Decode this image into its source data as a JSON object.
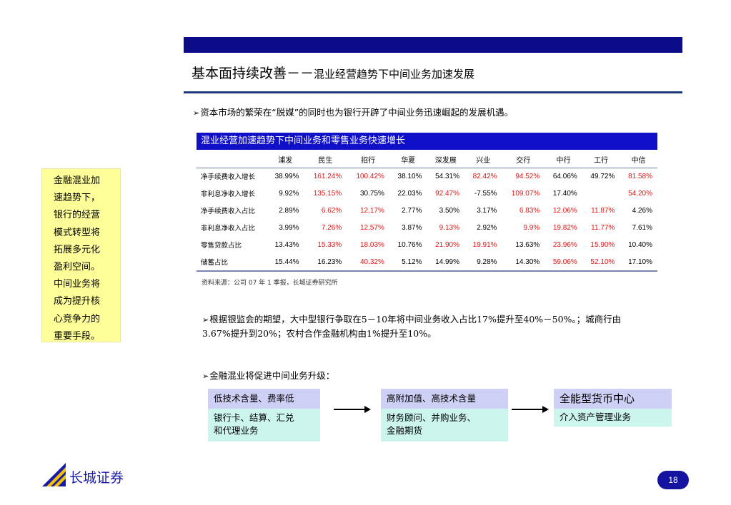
{
  "slide": {
    "title_main": "基本面持续改善－－",
    "title_sub": "混业经营趋势下中间业务加速发展",
    "page_number": "18"
  },
  "bullets": {
    "b1": "资本市场的繁荣在“脱媒”的同时也为银行开辟了中间业务迅速崛起的发展机遇。",
    "b2": "根据银监会的期望，大中型银行争取在5－10年将中间业务收入占比17%提升至40%－50%。；城商行由3.67%提升到20%；农村合作金融机构由1%提升至10%。",
    "b3": "金融混业将促进中间业务升级：",
    "arrow_glyph": "➢"
  },
  "table": {
    "title": "混业经营加速趋势下中间业务和零售业务快速增长",
    "columns": [
      "浦发",
      "民生",
      "招行",
      "华夏",
      "深发展",
      "兴业",
      "交行",
      "中行",
      "工行",
      "中信"
    ],
    "rows": [
      {
        "label": "净手续费收入增长",
        "values": [
          "38.99%",
          "161.24%",
          "100.42%",
          "38.10%",
          "54.31%",
          "82.42%",
          "94.52%",
          "64.06%",
          "49.72%",
          "81.58%"
        ],
        "red": [
          false,
          true,
          true,
          false,
          false,
          true,
          true,
          false,
          false,
          true
        ]
      },
      {
        "label": "非利息净收入增长",
        "values": [
          "9.92%",
          "135.15%",
          "30.75%",
          "22.03%",
          "92.47%",
          "-7.55%",
          "109.07%",
          "17.40%",
          "",
          "54.20%"
        ],
        "red": [
          false,
          true,
          false,
          false,
          true,
          false,
          true,
          false,
          false,
          true
        ]
      },
      {
        "label": "净手续费收入占比",
        "values": [
          "2.89%",
          "6.62%",
          "12.17%",
          "2.77%",
          "3.50%",
          "3.17%",
          "6.83%",
          "12.06%",
          "11.87%",
          "4.26%"
        ],
        "red": [
          false,
          true,
          true,
          false,
          false,
          false,
          true,
          true,
          true,
          false
        ]
      },
      {
        "label": "非利息净收入占比",
        "values": [
          "3.99%",
          "7.26%",
          "12.57%",
          "3.87%",
          "9.13%",
          "2.92%",
          "9.9%",
          "19.82%",
          "11.77%",
          "7.61%"
        ],
        "red": [
          false,
          true,
          true,
          false,
          true,
          false,
          true,
          true,
          true,
          false
        ]
      },
      {
        "label": "零售贷款占比",
        "values": [
          "13.43%",
          "15.33%",
          "18.03%",
          "10.76%",
          "21.90%",
          "19.91%",
          "13.63%",
          "23.96%",
          "15.90%",
          "10.40%"
        ],
        "red": [
          false,
          true,
          true,
          false,
          true,
          true,
          false,
          true,
          true,
          false
        ]
      },
      {
        "label": "储蓄占比",
        "values": [
          "15.44%",
          "16.23%",
          "40.32%",
          "5.12%",
          "14.99%",
          "9.28%",
          "14.30%",
          "59.06%",
          "52.10%",
          "17.10%"
        ],
        "red": [
          false,
          false,
          true,
          false,
          false,
          false,
          false,
          true,
          true,
          false
        ]
      }
    ],
    "source": "资料来源：公司 07 年 1 季报，长城证券研究所"
  },
  "callout": {
    "lines": [
      "金融混业加",
      "速趋势下，",
      "银行的经营",
      "模式转型将",
      "拓展多元化",
      "盈利空间。",
      "中间业务将",
      "成为提升核",
      "心竞争力的",
      "重要手段。"
    ]
  },
  "flow": {
    "box1": {
      "head": "低技术含量、费率低",
      "body_line1": "银行卡、结算、汇兑",
      "body_line2": "和代理业务"
    },
    "box2": {
      "head": "高附加值、高技术含量",
      "body_line1": "财务顾问、并购业务、",
      "body_line2": "金融期货"
    },
    "box3": {
      "head": "全能型货币中心",
      "body_line1": "介入资产管理业务"
    }
  },
  "footer": {
    "logo_text": "长城证券"
  },
  "colors": {
    "accent_navy": "#0c0c88",
    "table_header_blue": "#1010c8",
    "highlight_red": "#e01515",
    "callout_yellow": "#ffff99"
  }
}
